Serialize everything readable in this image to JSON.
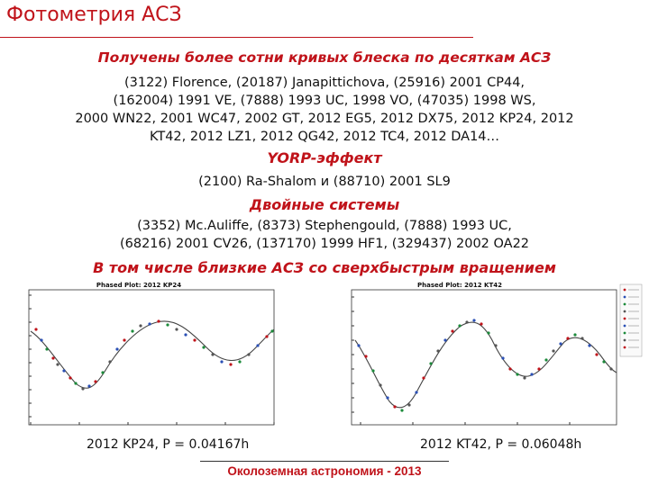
{
  "slide": {
    "title": "Фотометрия АСЗ",
    "section1": {
      "heading": "Получены более сотни кривых блеска по десяткам АСЗ",
      "lines": [
        "(3122) Florence, (20187) Janapittichova, (25916) 2001 CP44,",
        "(162004) 1991 VE, (7888) 1993 UC, 1998 VO, (47035) 1998 WS,",
        "2000 WN22, 2001 WC47, 2002 GT, 2012 EG5, 2012 DX75, 2012 KP24, 2012",
        "KT42, 2012 LZ1, 2012 QG42, 2012 TC4, 2012 DA14…"
      ]
    },
    "section2": {
      "heading": "YORP-эффект",
      "lines": [
        "(2100)  Ra-Shalom и (88710) 2001 SL9"
      ]
    },
    "section3": {
      "heading": "Двойные системы",
      "lines": [
        "(3352) Mc.Auliffe, (8373) Stephengould, (7888) 1993 UC,",
        "(68216) 2001 CV26, (137170) 1999 HF1, (329437) 2002 OA22"
      ]
    },
    "section4": {
      "heading": "В том числе близкие АСЗ со сверхбыстрым вращением"
    },
    "plots": [
      {
        "title": "Phased Plot: 2012 KP24",
        "caption": "2012 KP24, P = 0.04167h"
      },
      {
        "title": "Phased Plot: 2012 KT42",
        "caption": "2012 KT42, P = 0.06048h"
      }
    ],
    "footer": "Околоземная астрономия - 2013"
  }
}
